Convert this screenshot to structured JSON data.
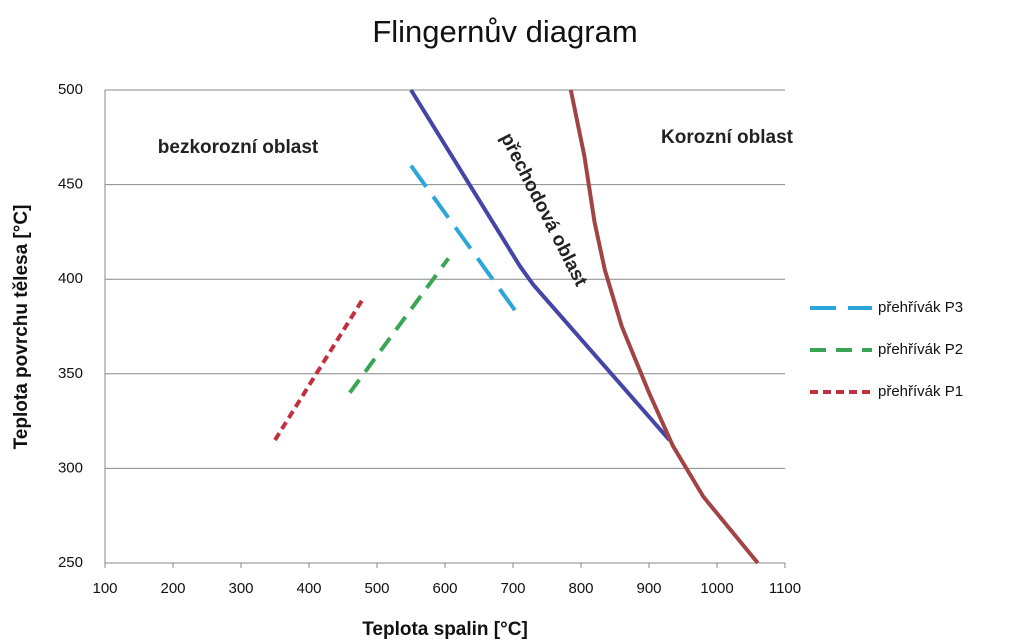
{
  "chart_data": {
    "type": "line",
    "title": "Flingernův diagram",
    "x_label": "Teplota spalin [°C]",
    "y_label": "Teplota povrchu tělesa [°C]",
    "xlim": [
      100,
      1100
    ],
    "ylim": [
      250,
      500
    ],
    "xticks": [
      100,
      200,
      300,
      400,
      500,
      600,
      700,
      800,
      900,
      1000,
      1100
    ],
    "yticks": [
      250,
      300,
      350,
      400,
      450,
      500
    ],
    "grid": true,
    "legend": "right",
    "annotations": [
      "bezkorozní oblast",
      "přechodová oblast",
      "Korozní oblast"
    ],
    "series": [
      {
        "name": "přehřívák P3",
        "color": "#2aa6d8",
        "dash": "long",
        "x": [
          550,
          710
        ],
        "values": [
          460,
          380
        ]
      },
      {
        "name": "přehřívák P2",
        "color": "#3aa655",
        "dash": "medium",
        "x": [
          460,
          605
        ],
        "values": [
          340,
          411
        ]
      },
      {
        "name": "přehřívák P1",
        "color": "#c0303e",
        "dash": "short",
        "x": [
          350,
          480
        ],
        "values": [
          315,
          390
        ]
      },
      {
        "color": "#4545a8",
        "x": [
          550,
          710,
          730,
          930
        ],
        "values": [
          500,
          407,
          397,
          315
        ]
      },
      {
        "color": "#a24446",
        "x": [
          785,
          805,
          820,
          835,
          860,
          900,
          935,
          980,
          1060
        ],
        "values": [
          500,
          465,
          430,
          405,
          375,
          340,
          312,
          285,
          250
        ]
      }
    ]
  }
}
